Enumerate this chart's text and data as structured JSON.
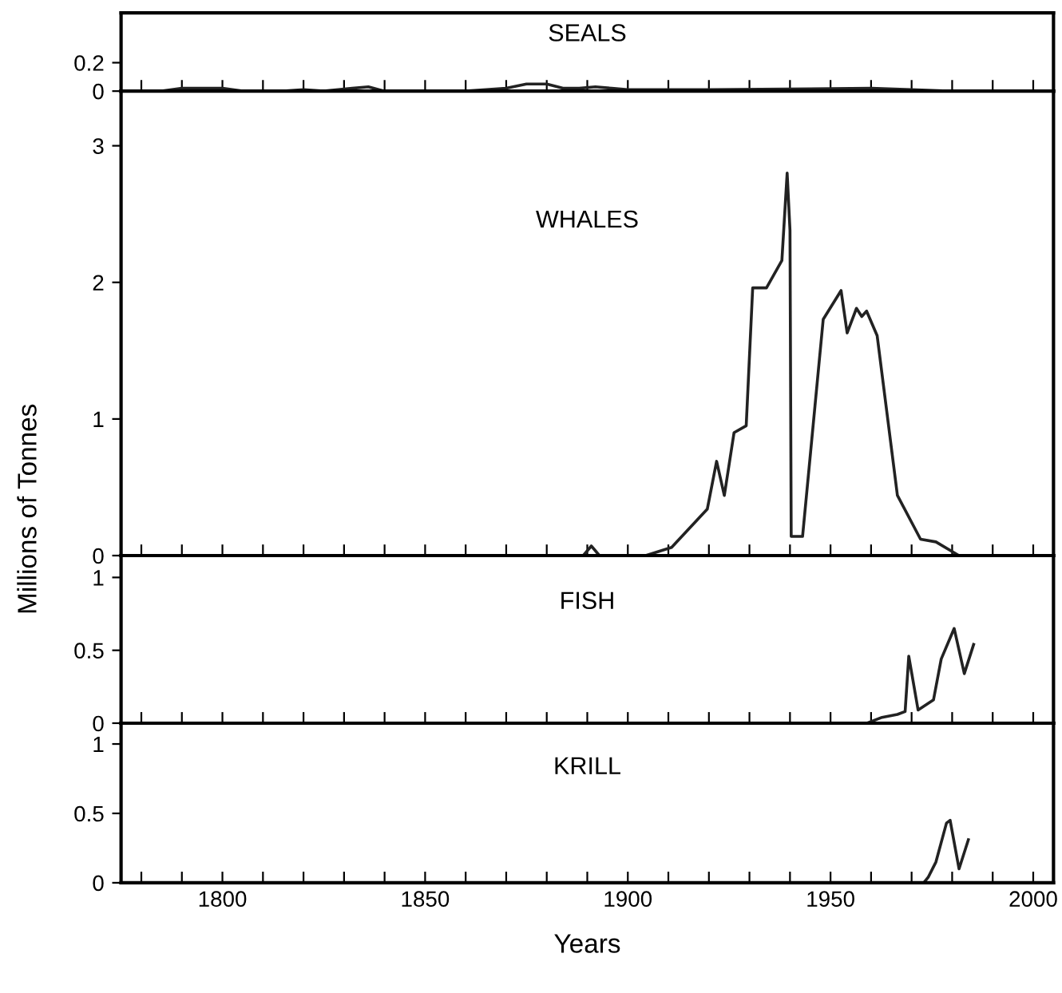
{
  "chart_data": [
    {
      "type": "line",
      "title": "SEALS",
      "xlim": [
        1775,
        2005
      ],
      "ylim": [
        0,
        0.55
      ],
      "yticks": [
        0,
        0.2
      ],
      "tick_labels": "y",
      "grid": false,
      "legend": false,
      "series": [
        {
          "color": "#222222",
          "x": [
            1785,
            1790,
            1795,
            1800,
            1805,
            1815,
            1820,
            1825,
            1832,
            1836,
            1840,
            1860,
            1870,
            1875,
            1880,
            1884,
            1888,
            1892,
            1896,
            1900,
            1905,
            1920,
            1960,
            1970,
            1980
          ],
          "values": [
            0,
            0.02,
            0.02,
            0.02,
            0,
            0,
            0.01,
            0,
            0.02,
            0.03,
            0,
            0,
            0.02,
            0.05,
            0.05,
            0.02,
            0.02,
            0.03,
            0.02,
            0.01,
            0.01,
            0.01,
            0.02,
            0.01,
            0
          ]
        }
      ]
    },
    {
      "type": "line",
      "title": "WHALES",
      "ylabel": "Millions of Tonnes",
      "xlim": [
        1775,
        2005
      ],
      "ylim": [
        0,
        3.4
      ],
      "yticks": [
        0,
        1,
        2,
        3
      ],
      "tick_labels": "y",
      "grid": false,
      "legend": false,
      "series": [
        {
          "color": "#222222",
          "x": [
            1775,
            1889,
            1891,
            1893,
            1904.4,
            1910.8,
            1919.6,
            1921.9,
            1923.8,
            1926.2,
            1929.2,
            1930.8,
            1934.2,
            1938,
            1939.3,
            1940,
            1940.3,
            1943.1,
            1948.2,
            1952.6,
            1954.1,
            1956.4,
            1957.7,
            1958.9,
            1961.5,
            1966.5,
            1972.2,
            1976,
            1981.7
          ],
          "values": [
            0,
            0,
            0.07,
            0,
            0,
            0.06,
            0.34,
            0.69,
            0.44,
            0.9,
            0.95,
            1.96,
            1.96,
            2.16,
            2.8,
            2.38,
            0.14,
            0.14,
            1.73,
            1.94,
            1.63,
            1.81,
            1.75,
            1.79,
            1.61,
            0.44,
            0.12,
            0.1,
            0
          ]
        }
      ]
    },
    {
      "type": "line",
      "title": "FISH",
      "xlim": [
        1775,
        2005
      ],
      "ylim": [
        0,
        1.15
      ],
      "yticks": [
        0,
        0.5,
        1
      ],
      "tick_labels": "y",
      "grid": false,
      "legend": false,
      "series": [
        {
          "color": "#222222",
          "x": [
            1959,
            1962.7,
            1966.5,
            1968.4,
            1969.3,
            1971.6,
            1975.4,
            1977.3,
            1980.5,
            1983,
            1985.3
          ],
          "values": [
            0,
            0.04,
            0.06,
            0.08,
            0.46,
            0.09,
            0.16,
            0.44,
            0.65,
            0.34,
            0.54
          ]
        }
      ]
    },
    {
      "type": "line",
      "title": "KRILL",
      "xlabel": "Years",
      "xlim": [
        1775,
        2005
      ],
      "ylim": [
        0,
        1.15
      ],
      "yticks": [
        0,
        0.5,
        1
      ],
      "grid": false,
      "legend": false,
      "xticks": [
        {
          "value": 1780,
          "label": null
        },
        {
          "value": 1790,
          "label": null
        },
        1800,
        {
          "value": 1810,
          "label": null
        },
        {
          "value": 1820,
          "label": null
        },
        {
          "value": 1830,
          "label": null
        },
        {
          "value": 1840,
          "label": null
        },
        1850,
        {
          "value": 1860,
          "label": null
        },
        {
          "value": 1870,
          "label": null
        },
        {
          "value": 1880,
          "label": null
        },
        {
          "value": 1890,
          "label": null
        },
        1900,
        {
          "value": 1910,
          "label": null
        },
        {
          "value": 1920,
          "label": null
        },
        {
          "value": 1930,
          "label": null
        },
        {
          "value": 1940,
          "label": null
        },
        1950,
        {
          "value": 1960,
          "label": null
        },
        {
          "value": 1970,
          "label": null
        },
        {
          "value": 1980,
          "label": null
        },
        {
          "value": 1990,
          "label": null
        },
        2000
      ],
      "series": [
        {
          "color": "#222222",
          "x": [
            1973,
            1974.1,
            1976,
            1978.6,
            1979.5,
            1981.7,
            1984
          ],
          "values": [
            0,
            0.04,
            0.15,
            0.43,
            0.45,
            0.1,
            0.31
          ]
        }
      ]
    }
  ]
}
